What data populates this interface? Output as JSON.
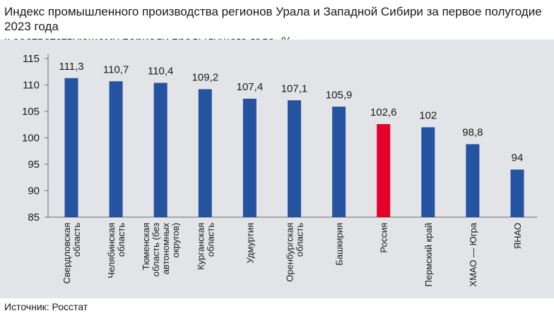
{
  "title_line1": "Индекс промышленного производства регионов Урала и Западной Сибири за первое полугодие 2023 года",
  "title_line2": "к соответствующему периоду предыдущего года, %",
  "source": "Источник: Росстат",
  "colors": {
    "bar": "#2453a0",
    "highlight": "#e4002b",
    "panel": "#e3e4e7"
  },
  "chart_data": {
    "type": "bar",
    "title": "Индекс промышленного производства регионов Урала и Западной Сибири за первое полугодие 2023 года к соответствующему периоду предыдущего года, %",
    "ylim": [
      85,
      115
    ],
    "yticks": [
      85,
      90,
      95,
      100,
      105,
      110,
      115
    ],
    "grid": false,
    "categories": [
      [
        "Свердловская",
        "область"
      ],
      [
        "Челябинская",
        "область"
      ],
      [
        "Тюменская",
        "область (без",
        "автономных",
        "округов)"
      ],
      [
        "Курганская",
        "область"
      ],
      [
        "Удмуртия"
      ],
      [
        "Оренбургская",
        "область"
      ],
      [
        "Башкирия"
      ],
      [
        "Россия"
      ],
      [
        "Пермский край"
      ],
      [
        "ХМАО — Югра"
      ],
      [
        "ЯНАО"
      ]
    ],
    "values": [
      111.3,
      110.7,
      110.4,
      109.2,
      107.4,
      107.1,
      105.9,
      102.6,
      102,
      98.8,
      94
    ],
    "value_labels": [
      "111,3",
      "110,7",
      "110,4",
      "109,2",
      "107,4",
      "107,1",
      "105,9",
      "102,6",
      "102",
      "98,8",
      "94"
    ],
    "highlight_index": 7
  }
}
